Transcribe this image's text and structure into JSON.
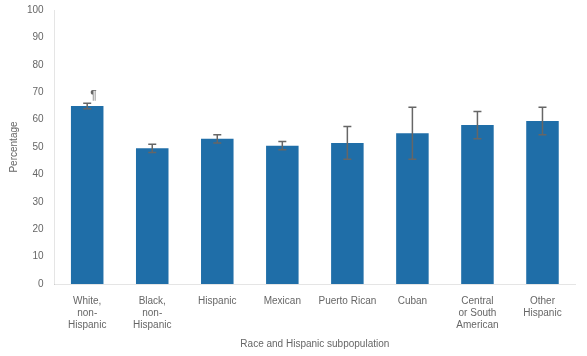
{
  "chart_data": {
    "type": "bar",
    "categories": [
      "White,\nnon-\nHispanic",
      "Black,\nnon-\nHispanic",
      "Hispanic",
      "Mexican",
      "Puerto Rican",
      "Cuban",
      "Central\nor South\nAmerican",
      "Other\nHispanic"
    ],
    "values": [
      65.0,
      49.5,
      53.0,
      50.5,
      51.5,
      55.0,
      58.0,
      59.5
    ],
    "errors_low": [
      1.0,
      1.5,
      1.5,
      1.5,
      6.0,
      9.5,
      5.0,
      5.0
    ],
    "errors_high": [
      1.0,
      1.5,
      1.5,
      1.5,
      6.0,
      9.5,
      5.0,
      5.0
    ],
    "color": "#1F6EA8",
    "xlabel": "Race and Hispanic subpopulation",
    "ylabel": "Percentage",
    "ylim": [
      0,
      100
    ],
    "yticks": [
      0,
      10,
      20,
      30,
      40,
      50,
      60,
      70,
      80,
      90,
      100
    ],
    "annotations": [
      {
        "text": "¶",
        "category": "White,\nnon-\nHispanic",
        "y": 66.5
      }
    ],
    "grid": false
  }
}
